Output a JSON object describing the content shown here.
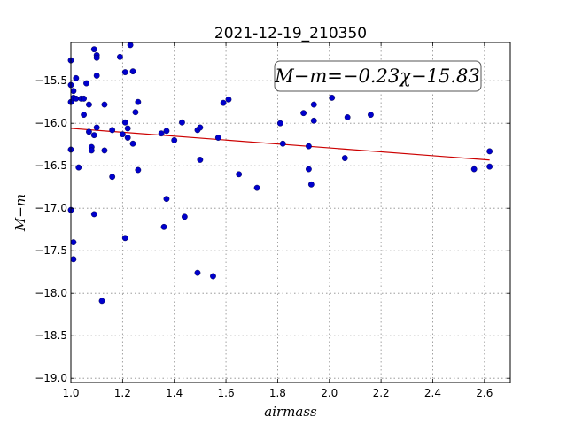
{
  "chart_data": {
    "type": "scatter",
    "title": "2021-12-19_210350",
    "xlabel": "airmass",
    "ylabel": "M−m",
    "xlim": [
      1.0,
      2.7
    ],
    "ylim": [
      -19.05,
      -15.05
    ],
    "y_inverted": true,
    "x_ticks": [
      1.0,
      1.2,
      1.4,
      1.6,
      1.8,
      2.0,
      2.2,
      2.4,
      2.6
    ],
    "x_tick_labels": [
      "1.0",
      "1.2",
      "1.4",
      "1.6",
      "1.8",
      "2.0",
      "2.2",
      "2.4",
      "2.6"
    ],
    "y_ticks": [
      -15.5,
      -16.0,
      -16.5,
      -17.0,
      -17.5,
      -18.0,
      -18.5,
      -19.0
    ],
    "y_tick_labels": [
      "−15.5",
      "−16.0",
      "−16.5",
      "−17.0",
      "−17.5",
      "−18.0",
      "−18.5",
      "−19.0"
    ],
    "grid": true,
    "point_color": "#0000cc",
    "fit_color": "#cc0000",
    "annotation": "M−m=−0.23χ−15.83",
    "fit": {
      "slope": -0.23,
      "intercept": -15.83,
      "x_range": [
        1.0,
        2.62
      ]
    },
    "points": [
      {
        "x": 1.0,
        "y": -15.26
      },
      {
        "x": 1.0,
        "y": -15.55
      },
      {
        "x": 1.0,
        "y": -15.75
      },
      {
        "x": 1.0,
        "y": -16.31
      },
      {
        "x": 1.0,
        "y": -17.02
      },
      {
        "x": 1.01,
        "y": -15.62
      },
      {
        "x": 1.01,
        "y": -15.7
      },
      {
        "x": 1.01,
        "y": -17.4
      },
      {
        "x": 1.01,
        "y": -17.6
      },
      {
        "x": 1.02,
        "y": -15.47
      },
      {
        "x": 1.02,
        "y": -15.71
      },
      {
        "x": 1.03,
        "y": -16.52
      },
      {
        "x": 1.04,
        "y": -15.71
      },
      {
        "x": 1.05,
        "y": -15.9
      },
      {
        "x": 1.05,
        "y": -15.71
      },
      {
        "x": 1.06,
        "y": -15.53
      },
      {
        "x": 1.07,
        "y": -15.78
      },
      {
        "x": 1.07,
        "y": -16.1
      },
      {
        "x": 1.08,
        "y": -16.28
      },
      {
        "x": 1.08,
        "y": -16.32
      },
      {
        "x": 1.09,
        "y": -16.14
      },
      {
        "x": 1.09,
        "y": -17.07
      },
      {
        "x": 1.09,
        "y": -15.13
      },
      {
        "x": 1.1,
        "y": -15.2
      },
      {
        "x": 1.1,
        "y": -15.23
      },
      {
        "x": 1.1,
        "y": -15.44
      },
      {
        "x": 1.1,
        "y": -16.05
      },
      {
        "x": 1.12,
        "y": -18.09
      },
      {
        "x": 1.13,
        "y": -15.78
      },
      {
        "x": 1.13,
        "y": -16.32
      },
      {
        "x": 1.16,
        "y": -16.08
      },
      {
        "x": 1.16,
        "y": -16.63
      },
      {
        "x": 1.19,
        "y": -15.22
      },
      {
        "x": 1.2,
        "y": -16.13
      },
      {
        "x": 1.21,
        "y": -15.4
      },
      {
        "x": 1.21,
        "y": -15.99
      },
      {
        "x": 1.21,
        "y": -17.35
      },
      {
        "x": 1.22,
        "y": -16.06
      },
      {
        "x": 1.22,
        "y": -16.17
      },
      {
        "x": 1.23,
        "y": -15.08
      },
      {
        "x": 1.24,
        "y": -15.39
      },
      {
        "x": 1.24,
        "y": -16.24
      },
      {
        "x": 1.25,
        "y": -15.87
      },
      {
        "x": 1.26,
        "y": -15.75
      },
      {
        "x": 1.26,
        "y": -16.55
      },
      {
        "x": 1.35,
        "y": -16.12
      },
      {
        "x": 1.36,
        "y": -17.22
      },
      {
        "x": 1.37,
        "y": -16.09
      },
      {
        "x": 1.37,
        "y": -16.89
      },
      {
        "x": 1.4,
        "y": -16.2
      },
      {
        "x": 1.43,
        "y": -15.99
      },
      {
        "x": 1.44,
        "y": -17.1
      },
      {
        "x": 1.49,
        "y": -16.08
      },
      {
        "x": 1.49,
        "y": -17.76
      },
      {
        "x": 1.5,
        "y": -16.05
      },
      {
        "x": 1.5,
        "y": -16.43
      },
      {
        "x": 1.55,
        "y": -17.8
      },
      {
        "x": 1.57,
        "y": -16.17
      },
      {
        "x": 1.59,
        "y": -15.76
      },
      {
        "x": 1.61,
        "y": -15.72
      },
      {
        "x": 1.65,
        "y": -16.6
      },
      {
        "x": 1.72,
        "y": -16.76
      },
      {
        "x": 1.81,
        "y": -16.0
      },
      {
        "x": 1.82,
        "y": -16.24
      },
      {
        "x": 1.9,
        "y": -15.88
      },
      {
        "x": 1.92,
        "y": -16.27
      },
      {
        "x": 1.92,
        "y": -16.54
      },
      {
        "x": 1.93,
        "y": -16.72
      },
      {
        "x": 1.94,
        "y": -15.78
      },
      {
        "x": 1.94,
        "y": -15.97
      },
      {
        "x": 2.01,
        "y": -15.7
      },
      {
        "x": 2.06,
        "y": -16.41
      },
      {
        "x": 2.07,
        "y": -15.93
      },
      {
        "x": 2.16,
        "y": -15.9
      },
      {
        "x": 2.56,
        "y": -16.54
      },
      {
        "x": 2.62,
        "y": -16.33
      },
      {
        "x": 2.62,
        "y": -16.51
      }
    ]
  }
}
